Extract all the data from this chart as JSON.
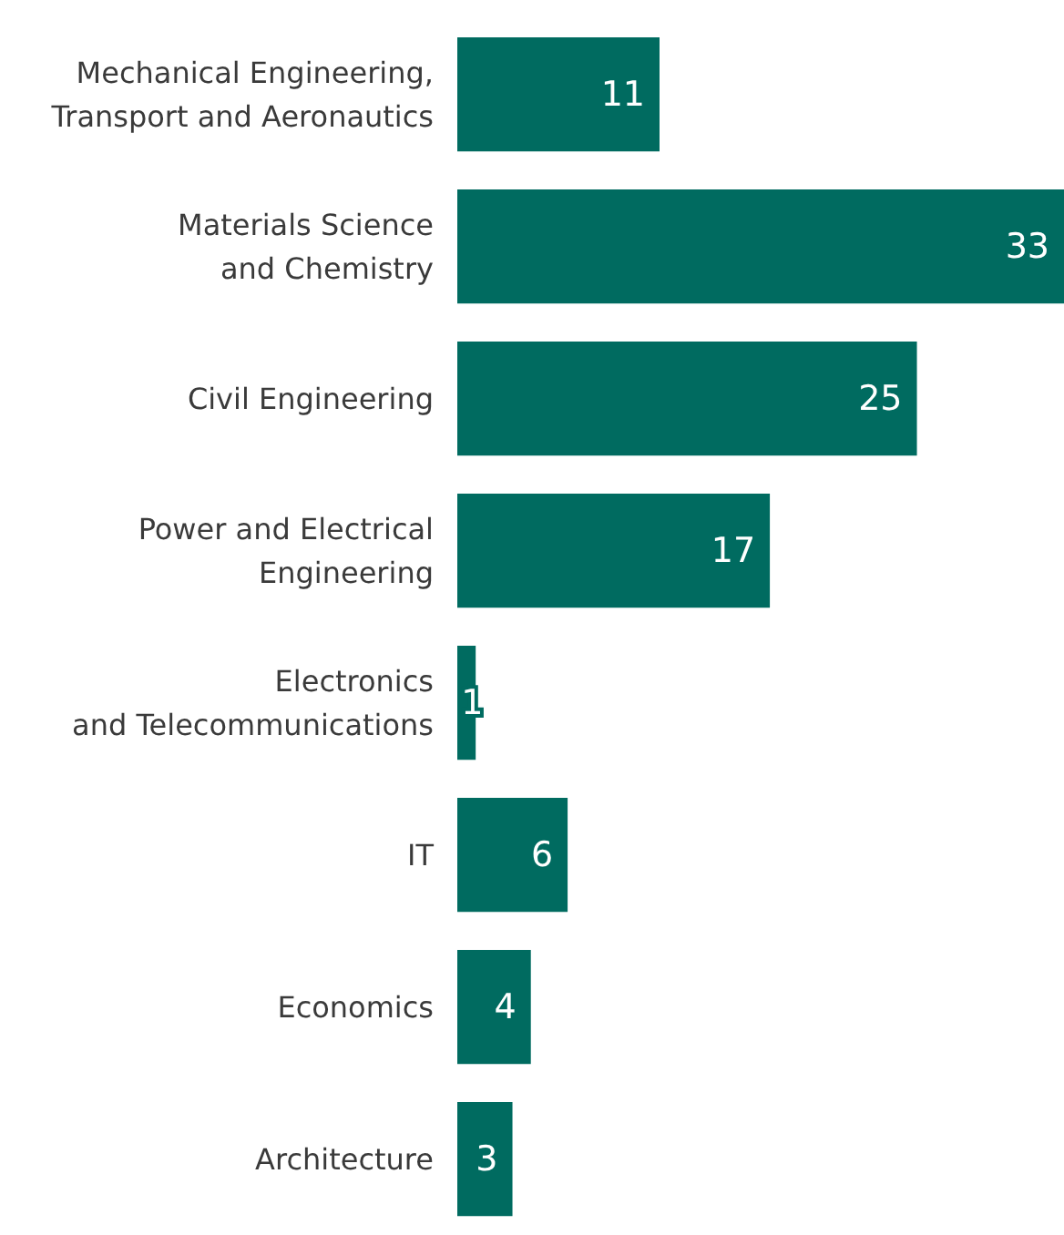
{
  "chart_data": {
    "type": "bar",
    "orientation": "horizontal",
    "categories": [
      "Mechanical Engineering,\nTransport and Aeronautics",
      "Materials Science\nand Chemistry",
      "Civil Engineering",
      "Power and Electrical\nEngineering",
      "Electronics\nand Telecommunications",
      "IT",
      "Economics",
      "Architecture"
    ],
    "values": [
      11,
      33,
      25,
      17,
      1,
      6,
      4,
      3
    ],
    "color": "#006b60",
    "data_labels": true
  }
}
